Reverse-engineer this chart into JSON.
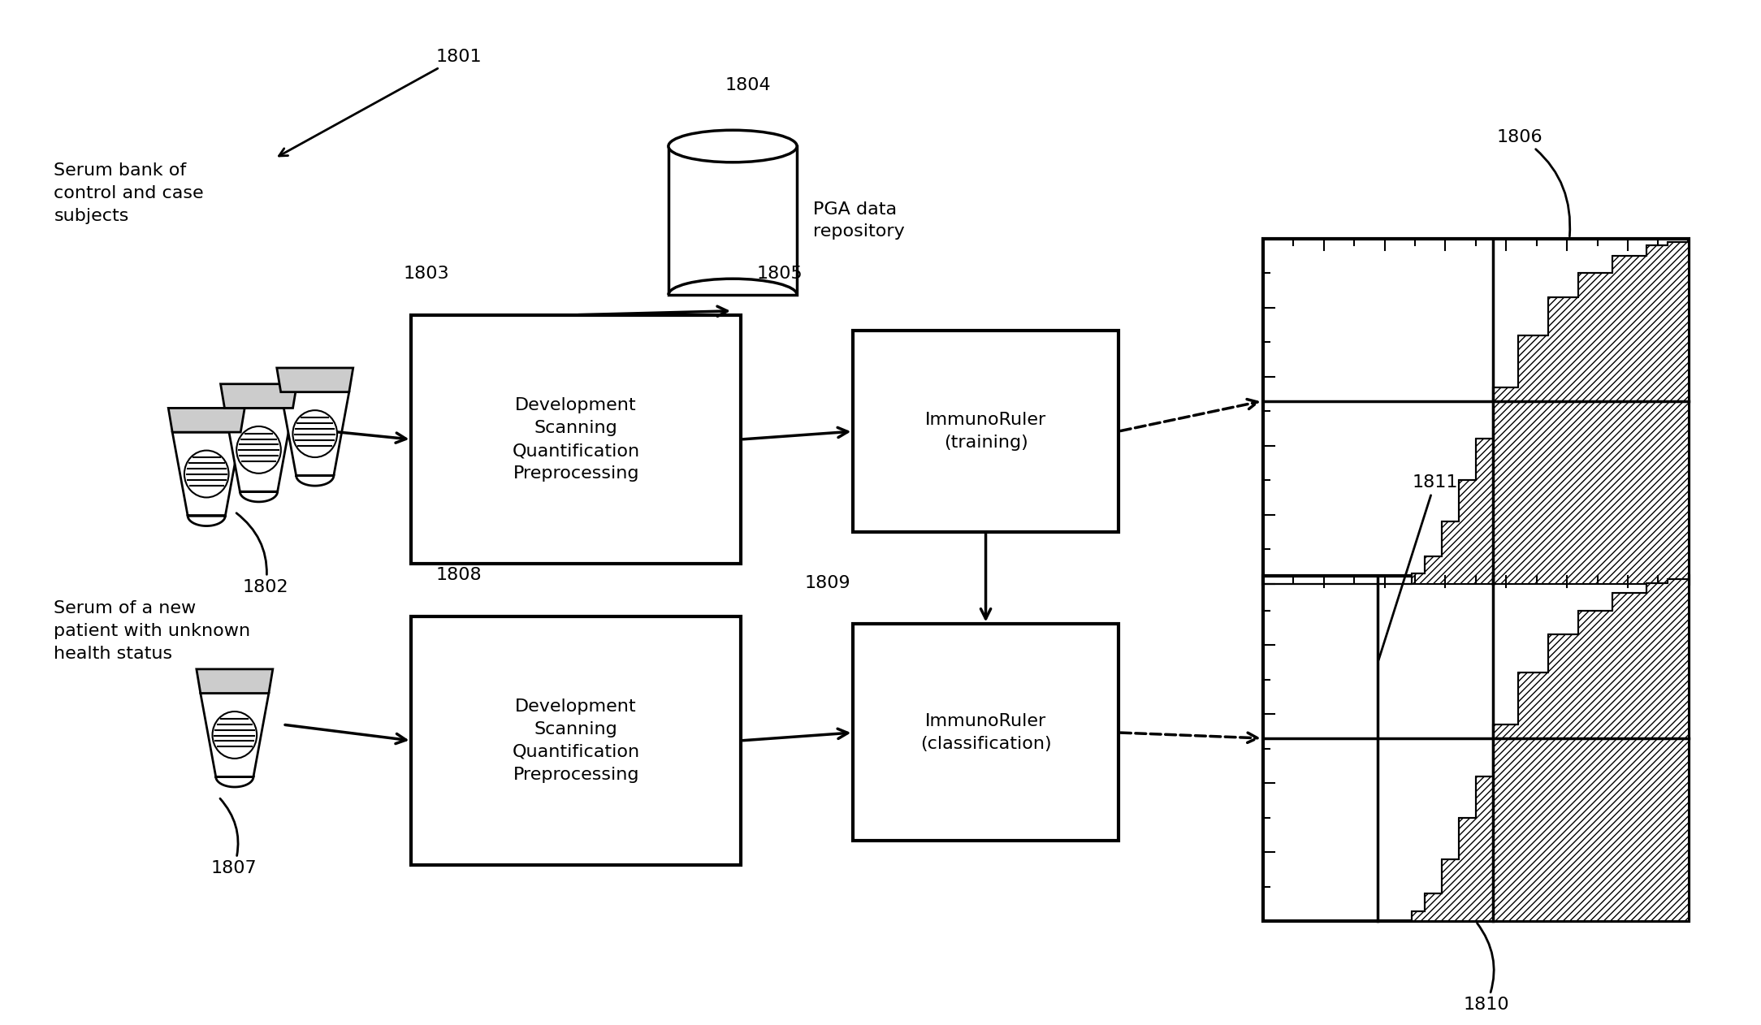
{
  "bg_color": "#ffffff",
  "label_1801": "1801",
  "label_1802": "1802",
  "label_1803": "1803",
  "label_1804": "1804",
  "label_1805": "1805",
  "label_1806": "1806",
  "label_1807": "1807",
  "label_1808": "1808",
  "label_1809": "1809",
  "label_1810": "1810",
  "label_1811": "1811",
  "text_serum_bank": "Serum bank of\ncontrol and case\nsubjects",
  "text_serum_new": "Serum of a new\npatient with unknown\nhealth status",
  "text_dev1": "Development\nScanning\nQuantification\nPreprocessing",
  "text_dev2": "Development\nScanning\nQuantification\nPreprocessing",
  "text_ir_training": "ImmunoRuler\n(training)",
  "text_ir_classif": "ImmunoRuler\n(classification)",
  "text_pga": "PGA data\nrepository",
  "font_size_label": 16,
  "font_size_box": 16,
  "font_size_desc": 16
}
